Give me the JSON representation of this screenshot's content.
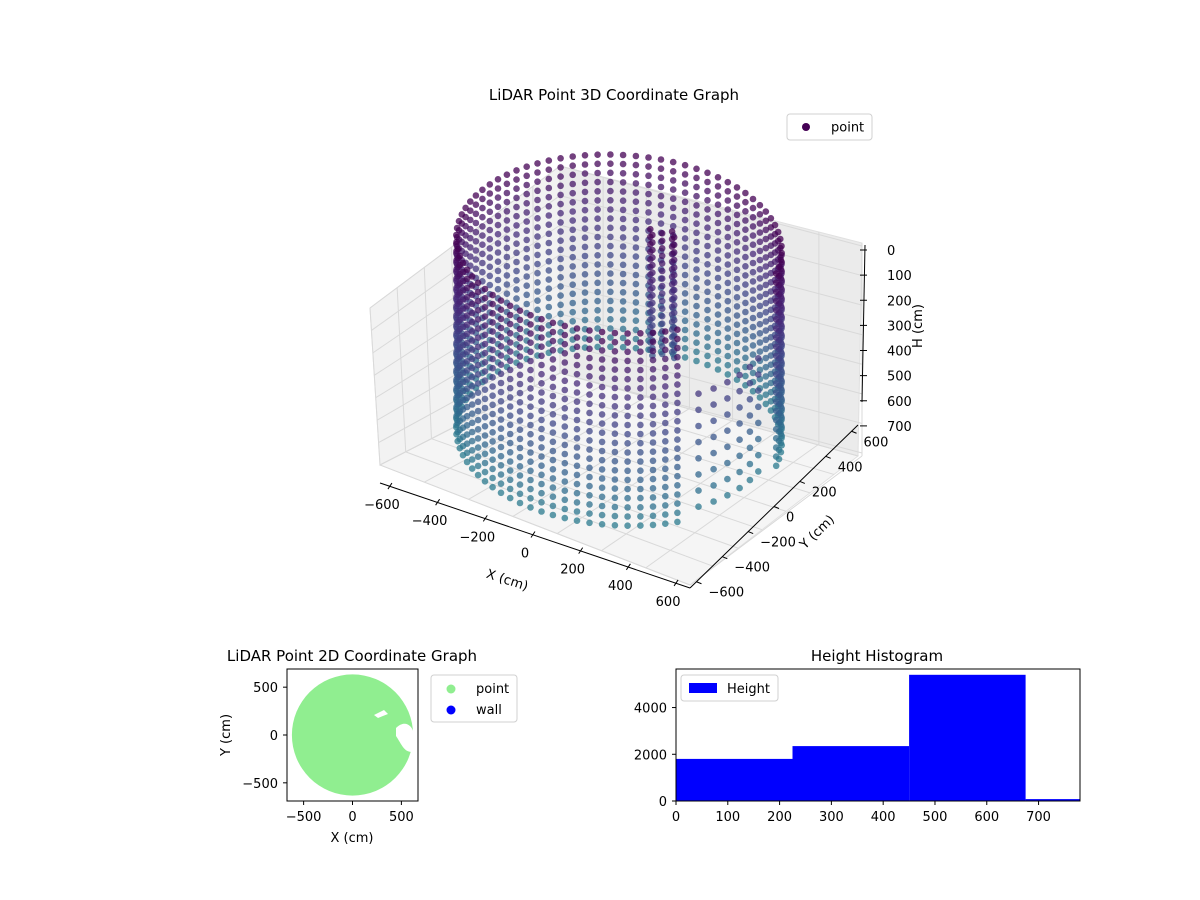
{
  "window": {
    "title": "LiDAR Point 3D Coordinate Graph"
  },
  "colors": {
    "background": "#ffffff",
    "point_3d_dark": "#440154",
    "point_3d_mid": "#3b528b",
    "point_3d_teal": "#2c728e",
    "point_2d": "#90ee90",
    "wall": "#0000ff",
    "histogram": "#0000ff"
  },
  "chart_data": [
    {
      "id": "lidar-3d",
      "type": "scatter",
      "title": "LiDAR Point 3D Coordinate Graph",
      "xlabel": "X (cm)",
      "ylabel": "Y (cm)",
      "zlabel": "H (cm)",
      "x_ticks": [
        "−600",
        "−400",
        "−200",
        "0",
        "200",
        "400",
        "600"
      ],
      "y_ticks": [
        "−600",
        "−400",
        "−200",
        "0",
        "200",
        "400",
        "600"
      ],
      "z_ticks": [
        "0",
        "100",
        "200",
        "300",
        "400",
        "500",
        "600",
        "700"
      ],
      "z_inverted": true,
      "xlim": [
        -650,
        650
      ],
      "ylim": [
        -650,
        650
      ],
      "zlim": [
        0,
        780
      ],
      "legend": [
        {
          "label": "point",
          "color": "#440154",
          "marker": "circle"
        }
      ],
      "legend_position": "top-right",
      "grid": true,
      "colormap": "viridis",
      "series": [
        {
          "name": "point",
          "shape": "cylindrical wall ring",
          "radius": 600,
          "h_range": [
            0,
            720
          ],
          "x_center": 0,
          "y_center": 0,
          "gap_sector_deg": [
            -40,
            10
          ],
          "interior_object": {
            "x": 100,
            "y": 150,
            "h_range": [
              0,
              450
            ]
          }
        }
      ]
    },
    {
      "id": "lidar-2d",
      "type": "scatter",
      "title": "LiDAR Point 2D Coordinate Graph",
      "xlabel": "X (cm)",
      "ylabel": "Y (cm)",
      "x_ticks": [
        "−500",
        "0",
        "500"
      ],
      "y_ticks": [
        "500",
        "0",
        "−500"
      ],
      "xlim": [
        -670,
        670
      ],
      "ylim": [
        -690,
        690
      ],
      "legend": [
        {
          "label": "point",
          "color": "#90ee90",
          "marker": "circle"
        },
        {
          "label": "wall",
          "color": "#0000ff",
          "marker": "circle"
        }
      ],
      "legend_position": "outside right",
      "series": [
        {
          "name": "point",
          "shape": "filled disc",
          "radius": 620,
          "x_center": 0,
          "y_center": 0
        }
      ]
    },
    {
      "id": "height-hist",
      "type": "bar",
      "title": "Height Histogram",
      "xlabel": "",
      "ylabel": "",
      "x_ticks": [
        "0",
        "100",
        "200",
        "300",
        "400",
        "500",
        "600",
        "700"
      ],
      "y_ticks": [
        "0",
        "2000",
        "4000"
      ],
      "xlim": [
        0,
        780
      ],
      "ylim": [
        0,
        5650
      ],
      "legend": [
        {
          "label": "Height",
          "color": "#0000ff"
        }
      ],
      "legend_position": "top-left",
      "series": [
        {
          "name": "Height",
          "bins": [
            {
              "start": 0,
              "end": 225,
              "count": 1800
            },
            {
              "start": 225,
              "end": 450,
              "count": 2350
            },
            {
              "start": 450,
              "end": 675,
              "count": 5400
            },
            {
              "start": 675,
              "end": 780,
              "count": 80
            }
          ]
        }
      ]
    }
  ]
}
